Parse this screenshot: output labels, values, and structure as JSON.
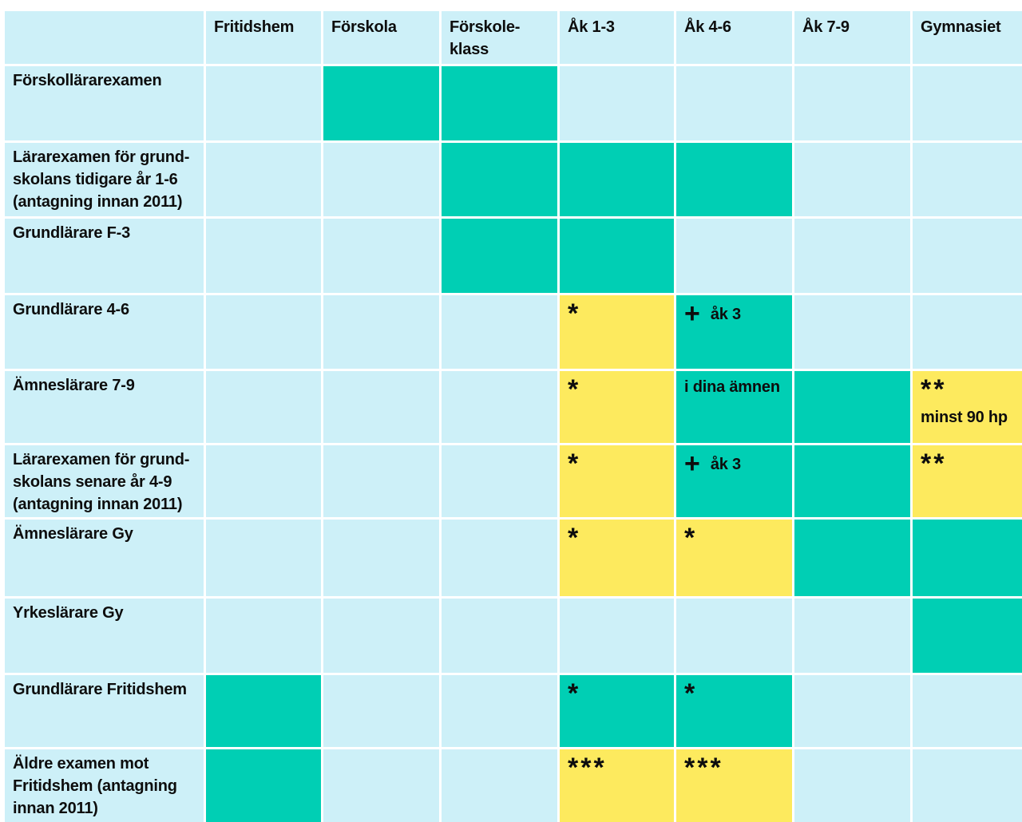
{
  "colors": {
    "light": "#cdf0f8",
    "teal": "#00cfb4",
    "yellow": "#fdea5e"
  },
  "columns": [
    "",
    "Fritidshem",
    "Förskola",
    "Förskole-\nklass",
    "Åk 1-3",
    "Åk 4-6",
    "Åk 7-9",
    "Gymnasiet"
  ],
  "rows": [
    {
      "label": "Förskollärarexamen",
      "cells": [
        {
          "color": "light"
        },
        {
          "color": "teal"
        },
        {
          "color": "teal"
        },
        {
          "color": "light"
        },
        {
          "color": "light"
        },
        {
          "color": "light"
        },
        {
          "color": "light"
        }
      ]
    },
    {
      "label": "Lärarexamen för grund-\nskolans tidigare år 1-6\n(antagning innan 2011)",
      "cells": [
        {
          "color": "light"
        },
        {
          "color": "light"
        },
        {
          "color": "teal"
        },
        {
          "color": "teal"
        },
        {
          "color": "teal"
        },
        {
          "color": "light"
        },
        {
          "color": "light"
        }
      ]
    },
    {
      "label": "Grundlärare F-3",
      "cells": [
        {
          "color": "light"
        },
        {
          "color": "light"
        },
        {
          "color": "teal"
        },
        {
          "color": "teal"
        },
        {
          "color": "light"
        },
        {
          "color": "light"
        },
        {
          "color": "light"
        }
      ]
    },
    {
      "label": "Grundlärare 4-6",
      "cells": [
        {
          "color": "light"
        },
        {
          "color": "light"
        },
        {
          "color": "light"
        },
        {
          "color": "yellow",
          "mark": "*"
        },
        {
          "color": "teal",
          "mark": "+",
          "note": "åk 3"
        },
        {
          "color": "light"
        },
        {
          "color": "light"
        }
      ]
    },
    {
      "label": "Ämneslärare 7-9",
      "cells": [
        {
          "color": "light"
        },
        {
          "color": "light"
        },
        {
          "color": "light"
        },
        {
          "color": "yellow",
          "mark": "*"
        },
        {
          "color": "teal",
          "note": "i dina ämnen"
        },
        {
          "color": "teal"
        },
        {
          "color": "yellow",
          "mark": "**",
          "note2": "minst 90 hp"
        }
      ]
    },
    {
      "label": "Lärarexamen för grund-\nskolans senare år 4-9\n(antagning innan 2011)",
      "cells": [
        {
          "color": "light"
        },
        {
          "color": "light"
        },
        {
          "color": "light"
        },
        {
          "color": "yellow",
          "mark": "*"
        },
        {
          "color": "teal",
          "mark": "+",
          "note": "åk 3"
        },
        {
          "color": "teal"
        },
        {
          "color": "yellow",
          "mark": "**"
        }
      ]
    },
    {
      "label": "Ämneslärare Gy",
      "cells": [
        {
          "color": "light"
        },
        {
          "color": "light"
        },
        {
          "color": "light"
        },
        {
          "color": "yellow",
          "mark": "*"
        },
        {
          "color": "yellow",
          "mark": "*"
        },
        {
          "color": "teal"
        },
        {
          "color": "teal"
        }
      ]
    },
    {
      "label": "Yrkeslärare Gy",
      "cells": [
        {
          "color": "light"
        },
        {
          "color": "light"
        },
        {
          "color": "light"
        },
        {
          "color": "light"
        },
        {
          "color": "light"
        },
        {
          "color": "light"
        },
        {
          "color": "teal"
        }
      ]
    },
    {
      "label": "Grundlärare Fritidshem",
      "cells": [
        {
          "color": "teal"
        },
        {
          "color": "light"
        },
        {
          "color": "light"
        },
        {
          "color": "teal",
          "mark": "*"
        },
        {
          "color": "teal",
          "mark": "*"
        },
        {
          "color": "light"
        },
        {
          "color": "light"
        }
      ]
    },
    {
      "label": "Äldre examen mot\nFritidshem (antagning\ninnan 2011)",
      "cells": [
        {
          "color": "teal"
        },
        {
          "color": "light"
        },
        {
          "color": "light"
        },
        {
          "color": "yellow",
          "mark": "***"
        },
        {
          "color": "yellow",
          "mark": "***"
        },
        {
          "color": "light"
        },
        {
          "color": "light"
        }
      ]
    }
  ]
}
